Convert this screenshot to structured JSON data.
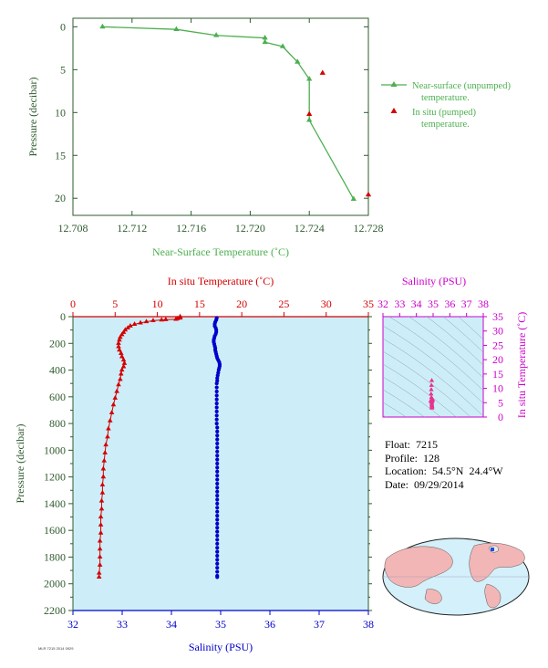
{
  "colors": {
    "green": "#4caf50",
    "axis_green": "#2e5b2e",
    "red": "#d40000",
    "blue": "#0000cc",
    "magenta": "#cc00cc",
    "panel_bg": "#cdeef8",
    "grid_line": "#8aa0b0"
  },
  "float_info": {
    "float_label": "Float:",
    "float_value": "7215",
    "profile_label": "Profile:",
    "profile_value": "128",
    "location_label": "Location:",
    "location_value": "54.5°N  24.4°W",
    "date_label": "Date:",
    "date_value": "09/29/2014"
  },
  "stamp_text": "MLR 7215 2014 0929",
  "map_icon": "world-map-icon",
  "chart_data": [
    {
      "type": "line",
      "id": "near-surface",
      "xlabel": "Near-Surface Temperature (˚C)",
      "ylabel": "Pressure (decibar)",
      "xlim": [
        12.708,
        12.728
      ],
      "ylim": [
        22,
        -1
      ],
      "xticks": [
        "12.708",
        "12.712",
        "12.716",
        "12.720",
        "12.724",
        "12.728"
      ],
      "yticks": [
        "0",
        "5",
        "10",
        "15",
        "20"
      ],
      "series": [
        {
          "name": "Near-surface (unpumped) temperature.",
          "marker": "triangle",
          "points": [
            [
              12.71,
              0.0
            ],
            [
              12.715,
              0.3
            ],
            [
              12.7177,
              1.0
            ],
            [
              12.721,
              1.3
            ],
            [
              12.721,
              1.8
            ],
            [
              12.7222,
              2.3
            ],
            [
              12.7232,
              4.1
            ],
            [
              12.724,
              6.1
            ],
            [
              12.724,
              10.9
            ],
            [
              12.727,
              20.1
            ]
          ]
        },
        {
          "name": "In situ (pumped) temperature.",
          "marker": "triangle",
          "points": [
            [
              12.7249,
              5.4
            ],
            [
              12.724,
              10.2
            ],
            [
              12.728,
              19.6
            ]
          ]
        }
      ]
    },
    {
      "type": "scatter",
      "id": "profile",
      "ylabel": "Pressure (decibar)",
      "top_axis_label": "In situ Temperature (˚C)",
      "bottom_axis_label": "Salinity (PSU)",
      "temperature_range": [
        0,
        35
      ],
      "salinity_range": [
        32,
        38
      ],
      "ylim": [
        2200,
        0
      ],
      "temperature_ticks": [
        "0",
        "5",
        "10",
        "15",
        "20",
        "25",
        "30",
        "35"
      ],
      "salinity_ticks": [
        "32",
        "33",
        "34",
        "35",
        "36",
        "37",
        "38"
      ],
      "pressure_ticks": [
        "0",
        "200",
        "400",
        "600",
        "800",
        "1000",
        "1200",
        "1400",
        "1600",
        "1800",
        "2000",
        "2200"
      ],
      "temperature_profile": [
        [
          12.7,
          0
        ],
        [
          12.7,
          5
        ],
        [
          12.7,
          10
        ],
        [
          12.4,
          15
        ],
        [
          12.2,
          20
        ],
        [
          11.0,
          22
        ],
        [
          10.5,
          25
        ],
        [
          9.5,
          30
        ],
        [
          8.7,
          38
        ],
        [
          8.0,
          47
        ],
        [
          7.3,
          57
        ],
        [
          6.8,
          70
        ],
        [
          6.5,
          85
        ],
        [
          6.2,
          100
        ],
        [
          6.0,
          118
        ],
        [
          5.8,
          135
        ],
        [
          5.6,
          155
        ],
        [
          5.5,
          175
        ],
        [
          5.4,
          200
        ],
        [
          5.4,
          225
        ],
        [
          5.5,
          250
        ],
        [
          5.7,
          275
        ],
        [
          5.8,
          300
        ],
        [
          6.0,
          325
        ],
        [
          6.1,
          350
        ],
        [
          6.0,
          375
        ],
        [
          5.8,
          400
        ],
        [
          5.7,
          430
        ],
        [
          5.6,
          470
        ],
        [
          5.4,
          510
        ],
        [
          5.2,
          560
        ],
        [
          5.0,
          610
        ],
        [
          4.8,
          660
        ],
        [
          4.6,
          720
        ],
        [
          4.4,
          780
        ],
        [
          4.2,
          840
        ],
        [
          4.1,
          900
        ],
        [
          3.9,
          960
        ],
        [
          3.8,
          1020
        ],
        [
          3.7,
          1080
        ],
        [
          3.6,
          1140
        ],
        [
          3.6,
          1200
        ],
        [
          3.5,
          1260
        ],
        [
          3.5,
          1320
        ],
        [
          3.4,
          1380
        ],
        [
          3.4,
          1440
        ],
        [
          3.3,
          1500
        ],
        [
          3.3,
          1560
        ],
        [
          3.3,
          1620
        ],
        [
          3.2,
          1680
        ],
        [
          3.2,
          1740
        ],
        [
          3.2,
          1800
        ],
        [
          3.2,
          1860
        ],
        [
          3.1,
          1920
        ],
        [
          3.1,
          1950
        ]
      ],
      "salinity_profile": [
        [
          34.92,
          10
        ],
        [
          34.91,
          25
        ],
        [
          34.89,
          40
        ],
        [
          34.88,
          55
        ],
        [
          34.88,
          70
        ],
        [
          34.9,
          85
        ],
        [
          34.91,
          100
        ],
        [
          34.91,
          115
        ],
        [
          34.9,
          130
        ],
        [
          34.88,
          145
        ],
        [
          34.87,
          160
        ],
        [
          34.86,
          175
        ],
        [
          34.86,
          190
        ],
        [
          34.87,
          205
        ],
        [
          34.88,
          220
        ],
        [
          34.89,
          235
        ],
        [
          34.89,
          250
        ],
        [
          34.9,
          265
        ],
        [
          34.91,
          280
        ],
        [
          34.92,
          295
        ],
        [
          34.93,
          310
        ],
        [
          34.95,
          325
        ],
        [
          34.97,
          340
        ],
        [
          34.98,
          355
        ],
        [
          34.98,
          370
        ],
        [
          34.97,
          385
        ],
        [
          34.96,
          400
        ],
        [
          34.95,
          420
        ],
        [
          34.94,
          440
        ],
        [
          34.93,
          460
        ],
        [
          34.93,
          480
        ],
        [
          34.92,
          500
        ],
        [
          34.92,
          530
        ],
        [
          34.92,
          560
        ],
        [
          34.92,
          590
        ],
        [
          34.92,
          620
        ],
        [
          34.92,
          650
        ],
        [
          34.92,
          680
        ],
        [
          34.92,
          710
        ],
        [
          34.92,
          740
        ],
        [
          34.92,
          770
        ],
        [
          34.92,
          800
        ],
        [
          34.93,
          830
        ],
        [
          34.93,
          860
        ],
        [
          34.93,
          890
        ],
        [
          34.93,
          920
        ],
        [
          34.93,
          950
        ],
        [
          34.93,
          980
        ],
        [
          34.93,
          1010
        ],
        [
          34.93,
          1040
        ],
        [
          34.93,
          1070
        ],
        [
          34.93,
          1100
        ],
        [
          34.93,
          1130
        ],
        [
          34.93,
          1160
        ],
        [
          34.93,
          1190
        ],
        [
          34.93,
          1220
        ],
        [
          34.93,
          1250
        ],
        [
          34.93,
          1280
        ],
        [
          34.93,
          1310
        ],
        [
          34.93,
          1340
        ],
        [
          34.93,
          1370
        ],
        [
          34.93,
          1400
        ],
        [
          34.93,
          1430
        ],
        [
          34.93,
          1460
        ],
        [
          34.93,
          1490
        ],
        [
          34.93,
          1520
        ],
        [
          34.93,
          1550
        ],
        [
          34.93,
          1580
        ],
        [
          34.93,
          1610
        ],
        [
          34.93,
          1640
        ],
        [
          34.93,
          1670
        ],
        [
          34.93,
          1700
        ],
        [
          34.93,
          1730
        ],
        [
          34.93,
          1760
        ],
        [
          34.93,
          1790
        ],
        [
          34.93,
          1820
        ],
        [
          34.93,
          1850
        ],
        [
          34.93,
          1880
        ],
        [
          34.93,
          1910
        ],
        [
          34.93,
          1940
        ],
        [
          34.93,
          1950
        ]
      ]
    },
    {
      "type": "scatter",
      "id": "ts-diagram",
      "title": "Salinity (PSU)",
      "ylabel": "In situ Temperature (˚C)",
      "xlim": [
        32,
        38
      ],
      "ylim": [
        0,
        35
      ],
      "xticks": [
        "32",
        "33",
        "34",
        "35",
        "36",
        "37",
        "38"
      ],
      "yticks": [
        "0",
        "5",
        "10",
        "15",
        "20",
        "25",
        "30",
        "35"
      ],
      "points": [
        [
          34.92,
          12.7
        ],
        [
          34.9,
          11.0
        ],
        [
          34.89,
          9.5
        ],
        [
          34.88,
          8.0
        ],
        [
          34.9,
          6.8
        ],
        [
          34.91,
          6.2
        ],
        [
          34.88,
          5.8
        ],
        [
          34.86,
          5.5
        ],
        [
          34.88,
          5.4
        ],
        [
          34.9,
          5.7
        ],
        [
          34.93,
          6.0
        ],
        [
          34.97,
          6.1
        ],
        [
          34.96,
          5.8
        ],
        [
          34.94,
          5.6
        ],
        [
          34.93,
          5.2
        ],
        [
          34.92,
          4.8
        ],
        [
          34.92,
          4.4
        ],
        [
          34.93,
          4.1
        ],
        [
          34.93,
          3.8
        ],
        [
          34.93,
          3.6
        ],
        [
          34.93,
          3.4
        ],
        [
          34.93,
          3.2
        ],
        [
          34.93,
          3.1
        ]
      ]
    }
  ]
}
